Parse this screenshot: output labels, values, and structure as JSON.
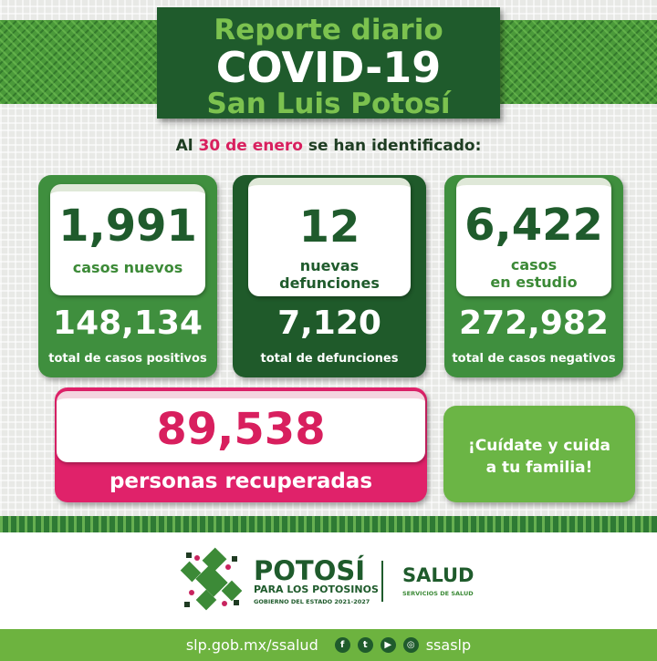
{
  "header": {
    "line1": "Reporte diario",
    "line2": "COVID-19",
    "line3": "San Luis Potosí"
  },
  "subtitle": {
    "prefix": "Al",
    "date": "30 de enero",
    "suffix": "se han identificado:"
  },
  "cards": [
    {
      "value": "1,991",
      "label_line1": "casos nuevos",
      "label_line2": "",
      "total": "148,134",
      "total_label": "total de casos positivos"
    },
    {
      "value": "12",
      "label_line1": "nuevas",
      "label_line2": "defunciones",
      "total": "7,120",
      "total_label": "total de defunciones"
    },
    {
      "value": "6,422",
      "label_line1": "casos",
      "label_line2": "en estudio",
      "total": "272,982",
      "total_label": "total de casos negativos"
    }
  ],
  "recovered": {
    "value": "89,538",
    "label": "personas recuperadas"
  },
  "message": {
    "line1": "¡Cuídate y cuida",
    "line2": "a tu familia!"
  },
  "logos": {
    "potosi": "POTOSÍ",
    "potosi_sub": "PARA LOS POTOSINOS",
    "gov": "GOBIERNO DEL ESTADO 2021-2027",
    "salud": "SALUD",
    "salud_sub": "SERVICIOS DE SALUD"
  },
  "footer": {
    "url": "slp.gob.mx/ssalud",
    "handle": "ssaslp",
    "icons": [
      "facebook-icon",
      "twitter-icon",
      "youtube-icon",
      "instagram-icon"
    ]
  },
  "colors": {
    "dark_green": "#1f5b2c",
    "green": "#3f8f3e",
    "light_green": "#6db33f",
    "pink": "#e0226a"
  }
}
